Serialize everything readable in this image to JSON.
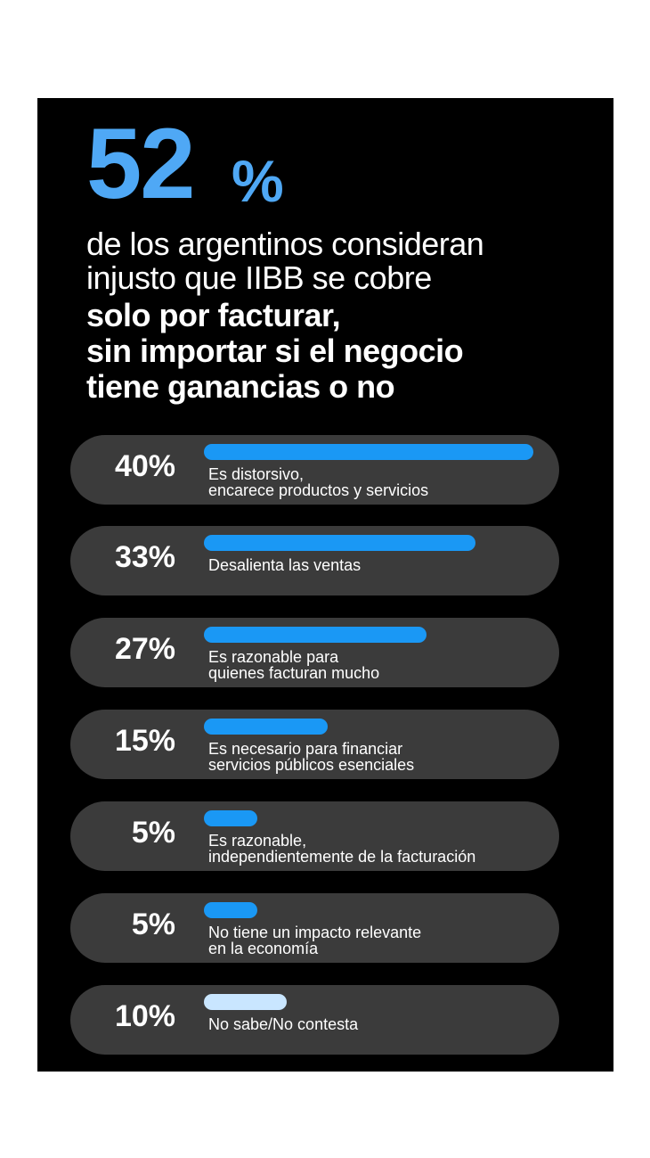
{
  "headline": {
    "number": "52",
    "percent_sign": "%",
    "lines": [
      {
        "text": "de los argentinos consideran",
        "bold": false
      },
      {
        "text": "injusto que IIBB se cobre",
        "bold": false
      },
      {
        "text": "solo por facturar,",
        "bold": true
      },
      {
        "text": "sin importar si el negocio",
        "bold": true
      },
      {
        "text": "tiene ganancias o no",
        "bold": true
      }
    ]
  },
  "colors": {
    "background": "#000000",
    "accent": "#4fa8f5",
    "bar": "#1a98f5",
    "bar_light": "#c9e6ff",
    "row": "#3b3b3b",
    "text": "#ffffff"
  },
  "chart_data": {
    "type": "bar",
    "orientation": "horizontal",
    "max_value": 40,
    "rows": [
      {
        "value": 40,
        "value_label": "40%",
        "label_lines": [
          "Es distorsivo,",
          "encarece productos y servicios"
        ],
        "color": "#1a98f5"
      },
      {
        "value": 33,
        "value_label": "33%",
        "label_lines": [
          "Desalienta las ventas"
        ],
        "color": "#1a98f5"
      },
      {
        "value": 27,
        "value_label": "27%",
        "label_lines": [
          "Es razonable para",
          "quienes facturan mucho"
        ],
        "color": "#1a98f5"
      },
      {
        "value": 15,
        "value_label": "15%",
        "label_lines": [
          "Es necesario para financiar",
          "servicios públicos esenciales"
        ],
        "color": "#1a98f5"
      },
      {
        "value": 5,
        "value_label": "5%",
        "label_lines": [
          "Es razonable,",
          "independientemente de la facturación"
        ],
        "color": "#1a98f5"
      },
      {
        "value": 5,
        "value_label": "5%",
        "label_lines": [
          "No tiene un impacto relevante",
          "en la economía"
        ],
        "color": "#1a98f5"
      },
      {
        "value": 10,
        "value_label": "10%",
        "label_lines": [
          "No sabe/No contesta"
        ],
        "color": "#c9e6ff"
      }
    ]
  }
}
